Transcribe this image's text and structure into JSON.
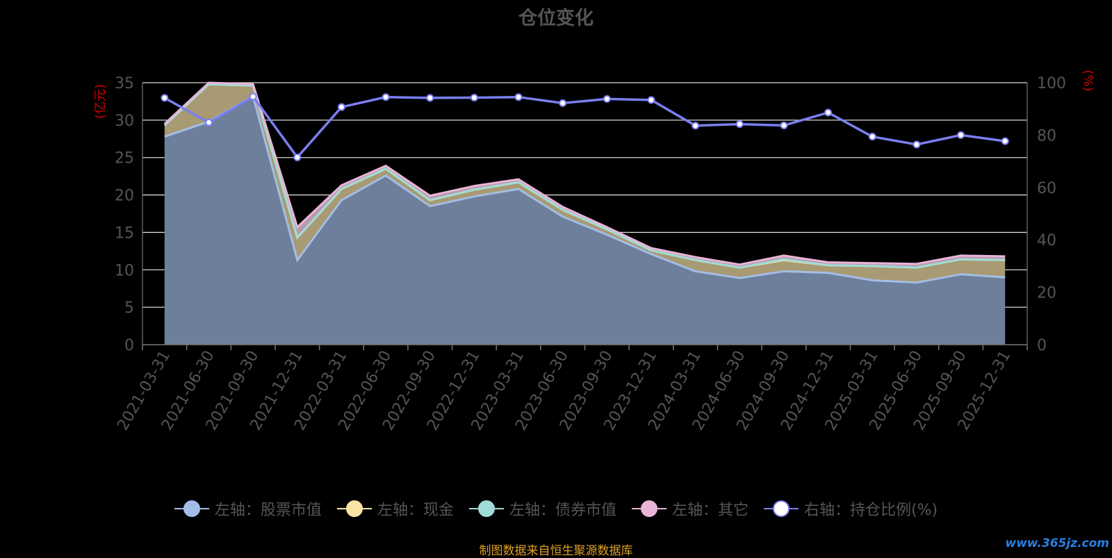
{
  "chart_data": {
    "type": "area",
    "title": "仓位变化",
    "left_axis": {
      "unit": "(亿元)",
      "ylim": [
        0,
        35
      ],
      "ticks": [
        0,
        5,
        10,
        15,
        20,
        25,
        30,
        35
      ]
    },
    "right_axis": {
      "unit": "(%)",
      "ylim": [
        0,
        100
      ],
      "ticks": [
        0,
        20,
        40,
        60,
        80,
        100
      ]
    },
    "categories": [
      "2021-03-31",
      "2021-06-30",
      "2021-09-30",
      "2021-12-31",
      "2022-03-31",
      "2022-06-30",
      "2022-09-30",
      "2022-12-31",
      "2023-03-31",
      "2023-06-30",
      "2023-09-30",
      "2023-12-31",
      "2024-03-31",
      "2024-06-30",
      "2024-09-30",
      "2024-12-31",
      "2025-03-31",
      "2025-06-30",
      "2025-09-30",
      "2025-12-31"
    ],
    "grid": true,
    "series": [
      {
        "name": "左轴：股票市值",
        "axis": "left",
        "stacked": true,
        "color": "#a3bde6",
        "values": [
          27.8,
          29.8,
          33.2,
          11.3,
          19.3,
          22.6,
          18.5,
          19.8,
          20.8,
          17.1,
          14.7,
          12.1,
          9.8,
          8.9,
          9.8,
          9.6,
          8.6,
          8.3,
          9.4,
          9.0
        ]
      },
      {
        "name": "左轴：现金",
        "axis": "left",
        "stacked": true,
        "color": "#f9e3a5",
        "values": [
          1.5,
          5.0,
          1.4,
          3.0,
          1.5,
          0.9,
          0.8,
          0.9,
          0.9,
          0.9,
          0.7,
          0.5,
          1.5,
          1.4,
          1.5,
          1.0,
          1.9,
          2.0,
          2.0,
          2.3
        ]
      },
      {
        "name": "左轴：债券市值",
        "axis": "left",
        "stacked": true,
        "color": "#a0dcd7",
        "values": [
          0.0,
          0.0,
          0.0,
          0.0,
          0.0,
          0.0,
          0.0,
          0.0,
          0.0,
          0.0,
          0.0,
          0.0,
          0.0,
          0.0,
          0.1,
          0.0,
          0.0,
          0.0,
          0.0,
          0.0
        ]
      },
      {
        "name": "左轴：其它",
        "axis": "left",
        "stacked": true,
        "color": "#e8b4d8",
        "values": [
          0.2,
          0.2,
          0.2,
          1.4,
          0.5,
          0.4,
          0.6,
          0.5,
          0.4,
          0.4,
          0.3,
          0.3,
          0.4,
          0.4,
          0.5,
          0.4,
          0.4,
          0.5,
          0.5,
          0.5
        ]
      },
      {
        "name": "右轴：持仓比例(%)",
        "axis": "right",
        "type": "line",
        "color": "#7b7ff0",
        "values": [
          94.2,
          84.8,
          94.7,
          71.5,
          90.7,
          94.5,
          94.2,
          94.3,
          94.5,
          92.2,
          93.8,
          93.4,
          83.6,
          84.2,
          83.7,
          88.6,
          79.4,
          76.4,
          80.0,
          77.7
        ]
      }
    ]
  },
  "source_note": "制图数据来自恒生聚源数据库",
  "watermark": "www.365jz.com"
}
